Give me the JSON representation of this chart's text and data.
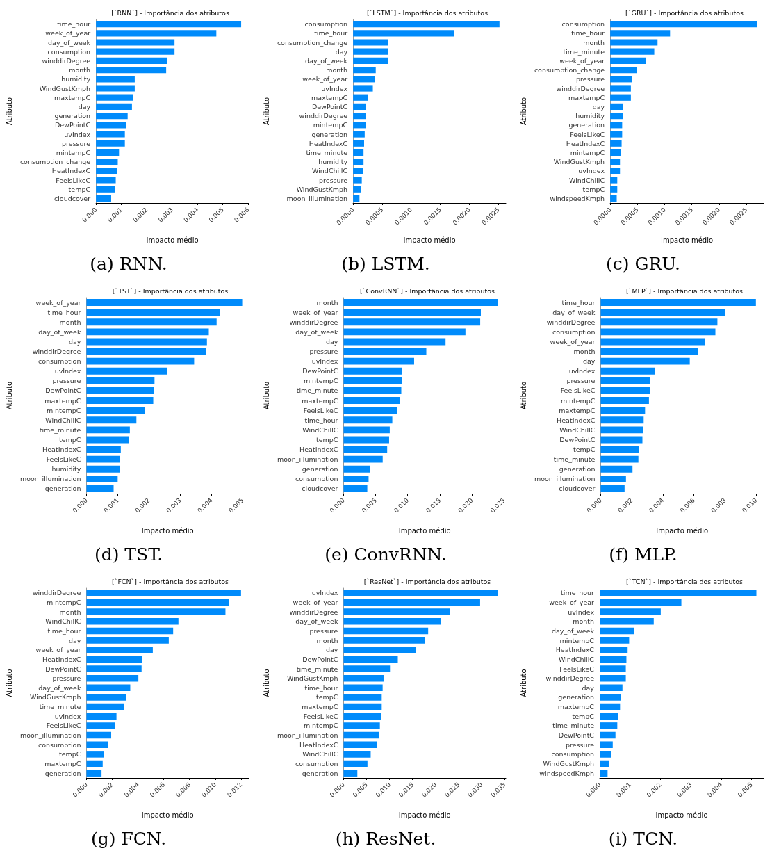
{
  "chart_data": [
    {
      "type": "bar",
      "orientation": "horizontal",
      "title": "[`RNN`] - Importância dos atributos",
      "xlabel": "Impacto médio",
      "ylabel": "Atributo",
      "annotations": [
        "(a) RNN."
      ],
      "color": "#008bfb",
      "categories": [
        "time_hour",
        "week_of_year",
        "day_of_week",
        "consumption",
        "winddirDegree",
        "month",
        "humidity",
        "WindGustKmph",
        "maxtempC",
        "day",
        "generation",
        "DewPointC",
        "uvIndex",
        "pressure",
        "mintempC",
        "consumption_change",
        "HeatIndexC",
        "FeelsLikeC",
        "tempC",
        "cloudcover"
      ],
      "values": [
        0.00573,
        0.00475,
        0.0031,
        0.0031,
        0.00282,
        0.00277,
        0.00153,
        0.00153,
        0.00146,
        0.00142,
        0.00125,
        0.0012,
        0.00114,
        0.00114,
        0.00091,
        0.00086,
        0.00083,
        0.00078,
        0.00076,
        0.0006
      ],
      "xlim": [
        0,
        0.00603
      ],
      "xticks": [
        {
          "value": 0,
          "label": "0.000"
        },
        {
          "value": 0.001,
          "label": "0.001"
        },
        {
          "value": 0.002,
          "label": "0.002"
        },
        {
          "value": 0.003,
          "label": "0.003"
        },
        {
          "value": 0.004,
          "label": "0.004"
        },
        {
          "value": 0.005,
          "label": "0.005"
        },
        {
          "value": 0.006,
          "label": "0.006"
        }
      ]
    },
    {
      "type": "bar",
      "orientation": "horizontal",
      "title": "[`LSTM`] - Importância dos atributos",
      "xlabel": "Impacto médio",
      "ylabel": "Atributo",
      "annotations": [
        "(b) LSTM."
      ],
      "color": "#008bfb",
      "categories": [
        "consumption",
        "time_hour",
        "consumption_change",
        "day",
        "day_of_week",
        "month",
        "week_of_year",
        "uvIndex",
        "maxtempC",
        "DewPointC",
        "winddirDegree",
        "mintempC",
        "generation",
        "HeatIndexC",
        "time_minute",
        "humidity",
        "WindChillC",
        "pressure",
        "WindGustKmph",
        "moon_illumination"
      ],
      "values": [
        0.00252,
        0.00174,
        0.0006,
        0.0006,
        0.0006,
        0.00039,
        0.00038,
        0.00034,
        0.00026,
        0.00022,
        0.00022,
        0.00022,
        0.0002,
        0.00019,
        0.00018,
        0.00018,
        0.00017,
        0.00015,
        0.00013,
        0.00011
      ],
      "xlim": [
        0,
        0.00263
      ],
      "xticks": [
        {
          "value": 0,
          "label": "0.0000"
        },
        {
          "value": 0.0005,
          "label": "0.0005"
        },
        {
          "value": 0.001,
          "label": "0.0010"
        },
        {
          "value": 0.0015,
          "label": "0.0015"
        },
        {
          "value": 0.002,
          "label": "0.0020"
        },
        {
          "value": 0.0025,
          "label": "0.0025"
        }
      ]
    },
    {
      "type": "bar",
      "orientation": "horizontal",
      "title": "[`GRU`] - Importância dos atributos",
      "xlabel": "Impacto médio",
      "ylabel": "Atributo",
      "annotations": [
        "(c) GRU."
      ],
      "color": "#008bfb",
      "categories": [
        "consumption",
        "time_hour",
        "month",
        "time_minute",
        "week_of_year",
        "consumption_change",
        "pressure",
        "winddirDegree",
        "maxtempC",
        "day",
        "humidity",
        "generation",
        "FeelsLikeC",
        "HeatIndexC",
        "mintempC",
        "WindGustKmph",
        "uvIndex",
        "WindChillC",
        "tempC",
        "windspeedKmph"
      ],
      "values": [
        0.0027,
        0.0011,
        0.00087,
        0.00081,
        0.00066,
        0.00049,
        0.0004,
        0.00038,
        0.00038,
        0.00024,
        0.00023,
        0.00022,
        0.00022,
        0.00021,
        0.00019,
        0.00018,
        0.00018,
        0.00013,
        0.00013,
        0.00012
      ],
      "xlim": [
        0,
        0.00282
      ],
      "xticks": [
        {
          "value": 0,
          "label": "0.0000"
        },
        {
          "value": 0.0005,
          "label": "0.0005"
        },
        {
          "value": 0.001,
          "label": "0.0010"
        },
        {
          "value": 0.0015,
          "label": "0.0015"
        },
        {
          "value": 0.002,
          "label": "0.0020"
        },
        {
          "value": 0.0025,
          "label": "0.0025"
        }
      ]
    },
    {
      "type": "bar",
      "orientation": "horizontal",
      "title": "[`TST`] - Importância dos atributos",
      "xlabel": "Impacto médio",
      "ylabel": "Atributo",
      "annotations": [
        "(d) TST."
      ],
      "color": "#008bfb",
      "categories": [
        "week_of_year",
        "time_hour",
        "month",
        "day_of_week",
        "day",
        "winddirDegree",
        "consumption",
        "uvIndex",
        "pressure",
        "DewPointC",
        "maxtempC",
        "mintempC",
        "WindChillC",
        "time_minute",
        "tempC",
        "HeatIndexC",
        "FeelsLikeC",
        "humidity",
        "moon_illumination",
        "generation"
      ],
      "values": [
        0.00499,
        0.00428,
        0.00417,
        0.00392,
        0.00386,
        0.00382,
        0.00345,
        0.00259,
        0.00218,
        0.00216,
        0.00214,
        0.00187,
        0.0016,
        0.00139,
        0.00137,
        0.0011,
        0.00108,
        0.00106,
        0.001,
        0.00087
      ],
      "xlim": [
        0,
        0.0052
      ],
      "xticks": [
        {
          "value": 0,
          "label": "0.000"
        },
        {
          "value": 0.001,
          "label": "0.001"
        },
        {
          "value": 0.002,
          "label": "0.002"
        },
        {
          "value": 0.003,
          "label": "0.003"
        },
        {
          "value": 0.004,
          "label": "0.004"
        },
        {
          "value": 0.005,
          "label": "0.005"
        }
      ]
    },
    {
      "type": "bar",
      "orientation": "horizontal",
      "title": "[`ConvRNN`] - Importância dos atributos",
      "xlabel": "Impacto médio",
      "ylabel": "Atributo",
      "annotations": [
        "(e) ConvRNN."
      ],
      "color": "#008bfb",
      "categories": [
        "month",
        "week_of_year",
        "winddirDegree",
        "day_of_week",
        "day",
        "pressure",
        "uvIndex",
        "DewPointC",
        "mintempC",
        "time_minute",
        "maxtempC",
        "FeelsLikeC",
        "time_hour",
        "WindChillC",
        "tempC",
        "HeatIndexC",
        "moon_illumination",
        "generation",
        "consumption",
        "cloudcover"
      ],
      "values": [
        0.0241,
        0.0214,
        0.0213,
        0.019,
        0.0159,
        0.0129,
        0.011,
        0.0091,
        0.0091,
        0.009,
        0.0088,
        0.0083,
        0.0076,
        0.0072,
        0.0071,
        0.0068,
        0.0061,
        0.0041,
        0.0039,
        0.0037
      ],
      "xlim": [
        0,
        0.0253
      ],
      "xticks": [
        {
          "value": 0,
          "label": "0.000"
        },
        {
          "value": 0.005,
          "label": "0.005"
        },
        {
          "value": 0.01,
          "label": "0.010"
        },
        {
          "value": 0.015,
          "label": "0.015"
        },
        {
          "value": 0.02,
          "label": "0.020"
        },
        {
          "value": 0.025,
          "label": "0.025"
        }
      ]
    },
    {
      "type": "bar",
      "orientation": "horizontal",
      "title": "[`MLP`] - Importância dos atributos",
      "xlabel": "Impacto médio",
      "ylabel": "Atributo",
      "annotations": [
        "(f) MLP."
      ],
      "color": "#008bfb",
      "categories": [
        "time_hour",
        "day_of_week",
        "winddirDegree",
        "consumption",
        "week_of_year",
        "month",
        "day",
        "uvIndex",
        "pressure",
        "FeelsLikeC",
        "mintempC",
        "maxtempC",
        "HeatIndexC",
        "WindChillC",
        "DewPointC",
        "tempC",
        "time_minute",
        "generation",
        "moon_illumination",
        "cloudcover"
      ],
      "values": [
        0.01,
        0.008,
        0.00752,
        0.00739,
        0.00671,
        0.00629,
        0.00574,
        0.00349,
        0.0032,
        0.0032,
        0.00311,
        0.00286,
        0.00277,
        0.00273,
        0.00269,
        0.00247,
        0.00243,
        0.00205,
        0.00163,
        0.00154
      ],
      "xlim": [
        0,
        0.0105
      ],
      "xticks": [
        {
          "value": 0,
          "label": "0.000"
        },
        {
          "value": 0.002,
          "label": "0.002"
        },
        {
          "value": 0.004,
          "label": "0.004"
        },
        {
          "value": 0.006,
          "label": "0.006"
        },
        {
          "value": 0.008,
          "label": "0.008"
        },
        {
          "value": 0.01,
          "label": "0.010"
        }
      ]
    },
    {
      "type": "bar",
      "orientation": "horizontal",
      "title": "[`FCN`] - Importância dos atributos",
      "xlabel": "Impacto médio",
      "ylabel": "Atributo",
      "annotations": [
        "(g) FCN."
      ],
      "color": "#008bfb",
      "categories": [
        "winddirDegree",
        "mintempC",
        "month",
        "WindChillC",
        "time_hour",
        "day",
        "week_of_year",
        "HeatIndexC",
        "DewPointC",
        "pressure",
        "day_of_week",
        "WindGustKmph",
        "time_minute",
        "uvIndex",
        "FeelsLikeC",
        "moon_illumination",
        "consumption",
        "tempC",
        "maxtempC",
        "generation"
      ],
      "values": [
        0.012,
        0.01108,
        0.01079,
        0.00714,
        0.00673,
        0.00639,
        0.00515,
        0.00433,
        0.00428,
        0.00403,
        0.0034,
        0.00306,
        0.00289,
        0.00233,
        0.00224,
        0.00192,
        0.00168,
        0.00136,
        0.00126,
        0.00117
      ],
      "xlim": [
        0,
        0.0126
      ],
      "xticks": [
        {
          "value": 0,
          "label": "0.000"
        },
        {
          "value": 0.002,
          "label": "0.002"
        },
        {
          "value": 0.004,
          "label": "0.004"
        },
        {
          "value": 0.006,
          "label": "0.006"
        },
        {
          "value": 0.008,
          "label": "0.008"
        },
        {
          "value": 0.01,
          "label": "0.010"
        },
        {
          "value": 0.012,
          "label": "0.012"
        }
      ]
    },
    {
      "type": "bar",
      "orientation": "horizontal",
      "title": "[`ResNet`] - Importância dos atributos",
      "xlabel": "Impacto médio",
      "ylabel": "Atributo",
      "annotations": [
        "(h) ResNet."
      ],
      "color": "#008bfb",
      "categories": [
        "uvIndex",
        "week_of_year",
        "winddirDegree",
        "day_of_week",
        "pressure",
        "month",
        "day",
        "DewPointC",
        "time_minute",
        "WindGustKmph",
        "time_hour",
        "tempC",
        "maxtempC",
        "FeelsLikeC",
        "mintempC",
        "moon_illumination",
        "HeatIndexC",
        "WindChillC",
        "consumption",
        "generation"
      ],
      "values": [
        0.0336,
        0.0297,
        0.0232,
        0.0212,
        0.0184,
        0.0177,
        0.0158,
        0.0118,
        0.0101,
        0.0087,
        0.0085,
        0.0083,
        0.0083,
        0.0082,
        0.0079,
        0.0077,
        0.0073,
        0.0059,
        0.0052,
        0.003
      ],
      "xlim": [
        0,
        0.0353
      ],
      "xticks": [
        {
          "value": 0,
          "label": "0.000"
        },
        {
          "value": 0.005,
          "label": "0.005"
        },
        {
          "value": 0.01,
          "label": "0.010"
        },
        {
          "value": 0.015,
          "label": "0.015"
        },
        {
          "value": 0.02,
          "label": "0.020"
        },
        {
          "value": 0.025,
          "label": "0.025"
        },
        {
          "value": 0.03,
          "label": "0.030"
        },
        {
          "value": 0.035,
          "label": "0.035"
        }
      ]
    },
    {
      "type": "bar",
      "orientation": "horizontal",
      "title": "[`TCN`] - Importância dos atributos",
      "xlabel": "Impacto médio",
      "ylabel": "Atributo",
      "annotations": [
        "(i) TCN."
      ],
      "color": "#008bfb",
      "categories": [
        "time_hour",
        "week_of_year",
        "uvIndex",
        "month",
        "day_of_week",
        "mintempC",
        "HeatIndexC",
        "WindChillC",
        "FeelsLikeC",
        "winddirDegree",
        "day",
        "generation",
        "maxtempC",
        "tempC",
        "time_minute",
        "DewPointC",
        "pressure",
        "consumption",
        "WindGustKmph",
        "windspeedKmph"
      ],
      "values": [
        0.00516,
        0.00269,
        0.00201,
        0.00178,
        0.00114,
        0.00097,
        0.00092,
        0.00088,
        0.00086,
        0.00086,
        0.00075,
        0.00069,
        0.00067,
        0.0006,
        0.00058,
        0.00052,
        0.00043,
        0.00038,
        0.00031,
        0.00026
      ],
      "xlim": [
        0,
        0.0054
      ],
      "xticks": [
        {
          "value": 0,
          "label": "0.000"
        },
        {
          "value": 0.001,
          "label": "0.001"
        },
        {
          "value": 0.002,
          "label": "0.002"
        },
        {
          "value": 0.003,
          "label": "0.003"
        },
        {
          "value": 0.004,
          "label": "0.004"
        },
        {
          "value": 0.005,
          "label": "0.005"
        }
      ]
    }
  ]
}
